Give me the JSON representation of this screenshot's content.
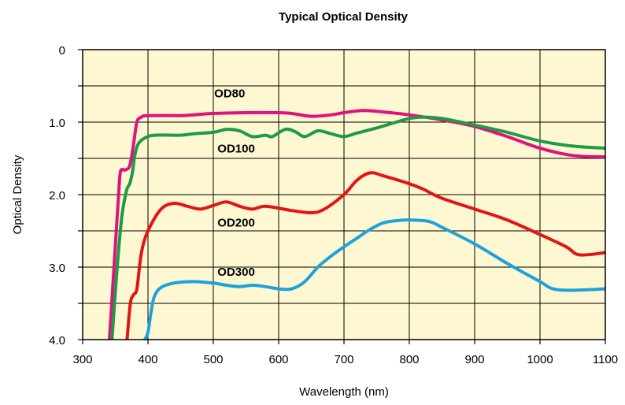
{
  "chart_data": {
    "type": "line",
    "title": "Typical Optical Density",
    "xlabel": "Wavelength (nm)",
    "ylabel": "Optical Density",
    "xlim": [
      300,
      1100
    ],
    "ylim": [
      0,
      4.0
    ],
    "y_inverted": true,
    "x_ticks": [
      300,
      400,
      500,
      600,
      700,
      800,
      900,
      1000,
      1100
    ],
    "y_ticks": [
      "0",
      "1.0",
      "2.0",
      "3.0",
      "4.0"
    ],
    "y_tick_values": [
      0,
      1.0,
      2.0,
      3.0,
      4.0
    ],
    "grid": true,
    "background": "#fdf8d2",
    "series": [
      {
        "name": "OD80",
        "color": "#e0127e",
        "label_at": [
          335,
          0.64
        ],
        "points": [
          [
            341,
            4.0
          ],
          [
            348,
            3.0
          ],
          [
            355,
            2.0
          ],
          [
            358,
            1.68
          ],
          [
            365,
            1.66
          ],
          [
            372,
            1.6
          ],
          [
            378,
            1.3
          ],
          [
            383,
            1.0
          ],
          [
            390,
            0.93
          ],
          [
            400,
            0.91
          ],
          [
            450,
            0.91
          ],
          [
            470,
            0.9
          ],
          [
            500,
            0.88
          ],
          [
            550,
            0.87
          ],
          [
            600,
            0.87
          ],
          [
            620,
            0.88
          ],
          [
            650,
            0.92
          ],
          [
            680,
            0.9
          ],
          [
            700,
            0.87
          ],
          [
            730,
            0.84
          ],
          [
            760,
            0.86
          ],
          [
            800,
            0.9
          ],
          [
            850,
            0.97
          ],
          [
            900,
            1.06
          ],
          [
            950,
            1.2
          ],
          [
            1000,
            1.36
          ],
          [
            1050,
            1.46
          ],
          [
            1100,
            1.48
          ]
        ]
      },
      {
        "name": "OD100",
        "color": "#1e9a48",
        "label_at": [
          341,
          1.16
        ],
        "points": [
          [
            345,
            4.0
          ],
          [
            352,
            3.1
          ],
          [
            360,
            2.3
          ],
          [
            367,
            1.95
          ],
          [
            372,
            1.85
          ],
          [
            376,
            1.7
          ],
          [
            380,
            1.45
          ],
          [
            385,
            1.3
          ],
          [
            395,
            1.22
          ],
          [
            410,
            1.18
          ],
          [
            450,
            1.18
          ],
          [
            470,
            1.16
          ],
          [
            500,
            1.14
          ],
          [
            520,
            1.1
          ],
          [
            540,
            1.12
          ],
          [
            560,
            1.2
          ],
          [
            580,
            1.18
          ],
          [
            590,
            1.2
          ],
          [
            610,
            1.1
          ],
          [
            625,
            1.13
          ],
          [
            640,
            1.2
          ],
          [
            660,
            1.12
          ],
          [
            680,
            1.16
          ],
          [
            700,
            1.2
          ],
          [
            720,
            1.15
          ],
          [
            750,
            1.08
          ],
          [
            780,
            1.0
          ],
          [
            800,
            0.95
          ],
          [
            820,
            0.93
          ],
          [
            850,
            0.95
          ],
          [
            900,
            1.04
          ],
          [
            950,
            1.14
          ],
          [
            1000,
            1.26
          ],
          [
            1050,
            1.33
          ],
          [
            1100,
            1.36
          ]
        ]
      },
      {
        "name": "OD200",
        "color": "#e21515",
        "label_at": [
          340,
          2.44
        ],
        "points": [
          [
            368,
            4.0
          ],
          [
            373,
            3.5
          ],
          [
            378,
            3.38
          ],
          [
            383,
            3.3
          ],
          [
            390,
            2.8
          ],
          [
            400,
            2.5
          ],
          [
            420,
            2.2
          ],
          [
            440,
            2.12
          ],
          [
            460,
            2.16
          ],
          [
            480,
            2.2
          ],
          [
            500,
            2.15
          ],
          [
            520,
            2.1
          ],
          [
            540,
            2.16
          ],
          [
            560,
            2.2
          ],
          [
            580,
            2.16
          ],
          [
            620,
            2.22
          ],
          [
            650,
            2.25
          ],
          [
            670,
            2.2
          ],
          [
            700,
            2.0
          ],
          [
            720,
            1.8
          ],
          [
            740,
            1.7
          ],
          [
            760,
            1.74
          ],
          [
            800,
            1.85
          ],
          [
            820,
            1.92
          ],
          [
            850,
            2.05
          ],
          [
            900,
            2.2
          ],
          [
            950,
            2.35
          ],
          [
            1000,
            2.55
          ],
          [
            1040,
            2.72
          ],
          [
            1060,
            2.83
          ],
          [
            1100,
            2.8
          ]
        ]
      },
      {
        "name": "OD300",
        "color": "#1fa2dc",
        "label_at": [
          340,
          3.1
        ],
        "points": [
          [
            395,
            4.0
          ],
          [
            400,
            3.9
          ],
          [
            405,
            3.6
          ],
          [
            410,
            3.4
          ],
          [
            420,
            3.28
          ],
          [
            440,
            3.22
          ],
          [
            470,
            3.2
          ],
          [
            500,
            3.22
          ],
          [
            520,
            3.25
          ],
          [
            540,
            3.27
          ],
          [
            560,
            3.25
          ],
          [
            580,
            3.27
          ],
          [
            600,
            3.3
          ],
          [
            620,
            3.3
          ],
          [
            640,
            3.2
          ],
          [
            660,
            3.0
          ],
          [
            680,
            2.85
          ],
          [
            700,
            2.72
          ],
          [
            720,
            2.6
          ],
          [
            740,
            2.48
          ],
          [
            760,
            2.39
          ],
          [
            780,
            2.36
          ],
          [
            800,
            2.35
          ],
          [
            830,
            2.37
          ],
          [
            850,
            2.45
          ],
          [
            900,
            2.68
          ],
          [
            950,
            2.95
          ],
          [
            1000,
            3.2
          ],
          [
            1020,
            3.3
          ],
          [
            1050,
            3.32
          ],
          [
            1100,
            3.3
          ]
        ]
      }
    ]
  }
}
